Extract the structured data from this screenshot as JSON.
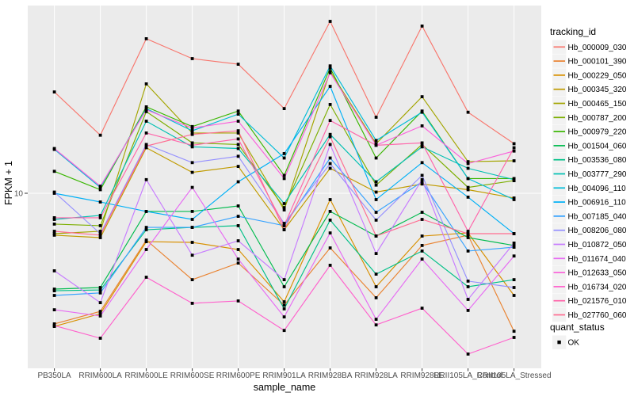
{
  "figure": {
    "y_axis": {
      "title": "FPKM + 1",
      "tick_label": "10"
    },
    "x_axis": {
      "title": "sample_name"
    },
    "legend": {
      "tracking_title": "tracking_id",
      "quant_title": "quant_status",
      "quant_ok_label": "OK"
    }
  },
  "colors": {
    "panel_bg": "#EBEBEB",
    "grid": "#FFFFFF",
    "tick_mark": "#333333",
    "tick_text": "#4D4D4D",
    "point": "#000000",
    "legend_key_bg": "#F2F2F2"
  },
  "chart_data": {
    "type": "line",
    "title": "",
    "xlabel": "sample_name",
    "ylabel": "FPKM + 1",
    "y_scale": "log10",
    "ylim": [
      2.4,
      47
    ],
    "y_ticks": [
      10
    ],
    "grid": true,
    "legend_position": "right",
    "point_shape": "black-square",
    "quant_status": "OK",
    "categories": [
      "PB350LA",
      "RRIM600LA",
      "RRIM600LE",
      "RRIM600SE",
      "RRIM600PE",
      "RRIM901LA",
      "RRIM928BA",
      "RRIM928LA",
      "RRIM928LE",
      "RRII105LA_Control",
      "RRII105LA_Stressed"
    ],
    "series": [
      {
        "name": "Hb_000009_030",
        "color": "#F8766D",
        "values": [
          23.2,
          16.2,
          36.1,
          30.6,
          29.2,
          20.2,
          41.7,
          18.8,
          40.1,
          19.6,
          15.1
        ]
      },
      {
        "name": "Hb_000101_390",
        "color": "#EA8331",
        "values": [
          3.38,
          3.75,
          6.78,
          4.88,
          5.6,
          3.95,
          6.35,
          4.2,
          6.48,
          7.06,
          3.18
        ]
      },
      {
        "name": "Hb_000229_050",
        "color": "#D89000",
        "values": [
          3.31,
          3.68,
          6.69,
          6.65,
          6.27,
          4.06,
          9.49,
          4.6,
          7.01,
          7.19,
          4.28
        ]
      },
      {
        "name": "Hb_000345_320",
        "color": "#C09B00",
        "values": [
          7.06,
          6.92,
          14.6,
          11.9,
          12.5,
          7.39,
          12.3,
          10.1,
          10.8,
          10.3,
          9.61
        ]
      },
      {
        "name": "Hb_000465_150",
        "color": "#A3A500",
        "values": [
          7.15,
          7.29,
          24.8,
          16.5,
          16.5,
          8.71,
          27.5,
          15.1,
          22.3,
          13.0,
          13.1
        ]
      },
      {
        "name": "Hb_000787_200",
        "color": "#7CAE00",
        "values": [
          7.74,
          7.64,
          19.7,
          15.2,
          15.0,
          8.88,
          20.9,
          10.7,
          15.0,
          10.5,
          11.1
        ]
      },
      {
        "name": "Hb_000979_220",
        "color": "#39B600",
        "values": [
          12.0,
          10.3,
          20.5,
          17.4,
          19.8,
          11.6,
          28.3,
          13.4,
          19.8,
          11.3,
          11.3
        ]
      },
      {
        "name": "Hb_001504_060",
        "color": "#00BB4E",
        "values": [
          4.51,
          4.57,
          8.6,
          8.6,
          9.0,
          4.6,
          8.6,
          7.01,
          8.54,
          6.92,
          6.48
        ]
      },
      {
        "name": "Hb_003536_080",
        "color": "#00C087",
        "values": [
          4.45,
          4.48,
          7.39,
          7.53,
          7.64,
          3.83,
          8.0,
          5.11,
          6.19,
          4.6,
          4.88
        ]
      },
      {
        "name": "Hb_003777_290",
        "color": "#00C0B2",
        "values": [
          8.05,
          8.32,
          18.2,
          14.7,
          14.5,
          9.18,
          16.3,
          11.0,
          14.7,
          12.3,
          11.2
        ]
      },
      {
        "name": "Hb_004096_110",
        "color": "#00BCD8",
        "values": [
          14.4,
          10.5,
          20.2,
          16.8,
          19.3,
          13.4,
          28.8,
          15.5,
          19.6,
          11.3,
          9.49
        ]
      },
      {
        "name": "Hb_006916_110",
        "color": "#00B0F6",
        "values": [
          10.0,
          9.3,
          8.6,
          8.05,
          11.0,
          13.9,
          24.3,
          9.49,
          12.9,
          9.68,
          7.15
        ]
      },
      {
        "name": "Hb_007185_040",
        "color": "#35A2FF",
        "values": [
          4.28,
          4.37,
          7.53,
          7.53,
          8.26,
          7.64,
          13.4,
          8.54,
          11.0,
          6.19,
          6.39
        ]
      },
      {
        "name": "Hb_008206_080",
        "color": "#9590FF",
        "values": [
          10.1,
          7.15,
          15.0,
          12.9,
          13.6,
          7.79,
          12.8,
          8.0,
          11.6,
          4.82,
          4.57
        ]
      },
      {
        "name": "Hb_010872_050",
        "color": "#C77CFF",
        "values": [
          5.25,
          4.03,
          11.2,
          5.98,
          6.74,
          4.88,
          15.0,
          6.06,
          11.2,
          4.14,
          6.61
        ]
      },
      {
        "name": "Hb_011674_040",
        "color": "#E76BF3",
        "values": [
          3.8,
          3.61,
          6.27,
          10.5,
          5.79,
          3.58,
          7.19,
          3.51,
          5.79,
          3.78,
          5.94
        ]
      },
      {
        "name": "Hb_012633_050",
        "color": "#FA62DB",
        "values": [
          14.5,
          10.6,
          20.0,
          17.2,
          18.2,
          11.3,
          27.2,
          14.9,
          17.5,
          12.8,
          14.2
        ]
      },
      {
        "name": "Hb_016734_020",
        "color": "#FF61CC",
        "values": [
          3.33,
          3.0,
          4.98,
          4.01,
          4.09,
          3.2,
          5.5,
          3.35,
          3.85,
          2.63,
          3.02
        ]
      },
      {
        "name": "Hb_021576_010",
        "color": "#FF65AA",
        "values": [
          8.16,
          8.16,
          16.5,
          14.9,
          15.7,
          7.64,
          18.3,
          14.9,
          15.2,
          7.29,
          14.6
        ]
      },
      {
        "name": "Hb_027760_060",
        "color": "#FF6C91",
        "values": [
          7.29,
          7.06,
          14.8,
          16.3,
          16.8,
          7.39,
          16.0,
          7.01,
          8.05,
          7.15,
          7.15
        ]
      }
    ]
  }
}
